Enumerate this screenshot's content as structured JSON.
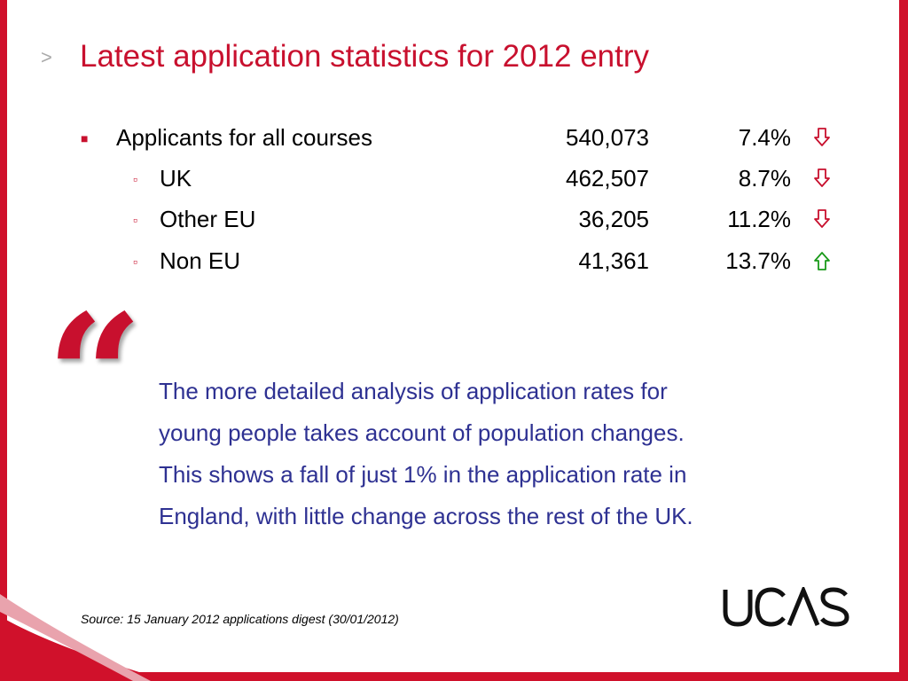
{
  "slide": {
    "title": "Latest application statistics for 2012 entry",
    "title_marker": ">",
    "rows": [
      {
        "label": "Applicants for all courses",
        "count": "540,073",
        "change": "7.4%",
        "direction": "down",
        "level": 1
      },
      {
        "label": "UK",
        "count": "462,507",
        "change": "8.7%",
        "direction": "down",
        "level": 2
      },
      {
        "label": "Other EU",
        "count": "36,205",
        "change": "11.2%",
        "direction": "down",
        "level": 2
      },
      {
        "label": "Non EU",
        "count": "41,361",
        "change": "13.7%",
        "direction": "up",
        "level": 2
      }
    ],
    "quote_mark": "“",
    "quote_lines": [
      "The more detailed analysis of application rates for",
      "young people takes account of population changes.",
      "This shows a fall of just 1% in the application rate in",
      "England, with little change across the rest of the UK."
    ],
    "source": "Source: 15 January 2012 applications digest (30/01/2012)",
    "logo_text": "UCAS"
  },
  "colors": {
    "accent": "#c8102e",
    "quote_text": "#2e3192",
    "arrow_down": "#c8102e",
    "arrow_up": "#1a9a1a"
  },
  "icons": {
    "down": "arrow-down-outline-icon",
    "up": "arrow-up-outline-icon"
  }
}
